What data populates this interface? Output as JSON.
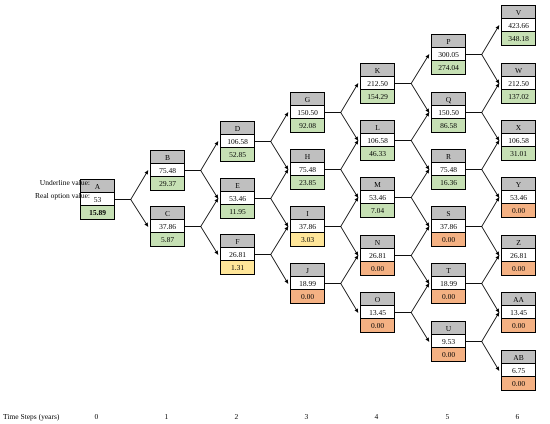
{
  "legend": {
    "underline": "Underline value:",
    "real_option": "Real option value:"
  },
  "time_axis": {
    "caption": "Time Steps (years)",
    "steps": [
      "0",
      "1",
      "2",
      "3",
      "4",
      "5",
      "6"
    ]
  },
  "colors": {
    "green": "#c6e0b4",
    "yellow": "#ffe699",
    "orange": "#f4b183",
    "label": "#bfbfbf"
  },
  "nodes": [
    {
      "id": "A",
      "step": 0,
      "underline": "53",
      "option": "15.89",
      "color": "green",
      "bold": true
    },
    {
      "id": "B",
      "step": 1,
      "underline": "75.48",
      "option": "29.37",
      "color": "green"
    },
    {
      "id": "C",
      "step": 1,
      "underline": "37.86",
      "option": "5.87",
      "color": "green"
    },
    {
      "id": "D",
      "step": 2,
      "underline": "106.58",
      "option": "52.85",
      "color": "green"
    },
    {
      "id": "E",
      "step": 2,
      "underline": "53.46",
      "option": "11.95",
      "color": "green"
    },
    {
      "id": "F",
      "step": 2,
      "underline": "26.81",
      "option": "1.31",
      "color": "yellow"
    },
    {
      "id": "G",
      "step": 3,
      "underline": "150.50",
      "option": "92.08",
      "color": "green"
    },
    {
      "id": "H",
      "step": 3,
      "underline": "75.48",
      "option": "23.85",
      "color": "green"
    },
    {
      "id": "I",
      "step": 3,
      "underline": "37.86",
      "option": "3.03",
      "color": "yellow"
    },
    {
      "id": "J",
      "step": 3,
      "underline": "18.99",
      "option": "0.00",
      "color": "orange"
    },
    {
      "id": "K",
      "step": 4,
      "underline": "212.50",
      "option": "154.29",
      "color": "green"
    },
    {
      "id": "L",
      "step": 4,
      "underline": "106.58",
      "option": "46.33",
      "color": "green"
    },
    {
      "id": "M",
      "step": 4,
      "underline": "53.46",
      "option": "7.04",
      "color": "green"
    },
    {
      "id": "N",
      "step": 4,
      "underline": "26.81",
      "option": "0.00",
      "color": "orange"
    },
    {
      "id": "O",
      "step": 4,
      "underline": "13.45",
      "option": "0.00",
      "color": "orange"
    },
    {
      "id": "P",
      "step": 5,
      "underline": "300.05",
      "option": "274.04",
      "color": "green"
    },
    {
      "id": "Q",
      "step": 5,
      "underline": "150.50",
      "option": "86.58",
      "color": "green"
    },
    {
      "id": "R",
      "step": 5,
      "underline": "75.48",
      "option": "16.36",
      "color": "green"
    },
    {
      "id": "S",
      "step": 5,
      "underline": "37.86",
      "option": "0.00",
      "color": "orange"
    },
    {
      "id": "T",
      "step": 5,
      "underline": "18.99",
      "option": "0.00",
      "color": "orange"
    },
    {
      "id": "U",
      "step": 5,
      "underline": "9.53",
      "option": "0.00",
      "color": "orange"
    },
    {
      "id": "V",
      "step": 6,
      "underline": "423.66",
      "option": "348.18",
      "color": "green"
    },
    {
      "id": "W",
      "step": 6,
      "underline": "212.50",
      "option": "137.02",
      "color": "green"
    },
    {
      "id": "X",
      "step": 6,
      "underline": "106.58",
      "option": "31.01",
      "color": "green"
    },
    {
      "id": "Y",
      "step": 6,
      "underline": "53.46",
      "option": "0.00",
      "color": "orange"
    },
    {
      "id": "Z",
      "step": 6,
      "underline": "26.81",
      "option": "0.00",
      "color": "orange"
    },
    {
      "id": "AA",
      "step": 6,
      "underline": "13.45",
      "option": "0.00",
      "color": "orange"
    },
    {
      "id": "AB",
      "step": 6,
      "underline": "6.75",
      "option": "0.00",
      "color": "orange"
    }
  ],
  "edges": [
    [
      "A",
      "B"
    ],
    [
      "A",
      "C"
    ],
    [
      "B",
      "D"
    ],
    [
      "B",
      "E"
    ],
    [
      "C",
      "E"
    ],
    [
      "C",
      "F"
    ],
    [
      "D",
      "G"
    ],
    [
      "D",
      "H"
    ],
    [
      "E",
      "H"
    ],
    [
      "E",
      "I"
    ],
    [
      "F",
      "I"
    ],
    [
      "F",
      "J"
    ],
    [
      "G",
      "K"
    ],
    [
      "G",
      "L"
    ],
    [
      "H",
      "L"
    ],
    [
      "H",
      "M"
    ],
    [
      "I",
      "M"
    ],
    [
      "I",
      "N"
    ],
    [
      "J",
      "N"
    ],
    [
      "J",
      "O"
    ],
    [
      "K",
      "P"
    ],
    [
      "K",
      "Q"
    ],
    [
      "L",
      "Q"
    ],
    [
      "L",
      "R"
    ],
    [
      "M",
      "R"
    ],
    [
      "M",
      "S"
    ],
    [
      "N",
      "S"
    ],
    [
      "N",
      "T"
    ],
    [
      "O",
      "T"
    ],
    [
      "O",
      "U"
    ],
    [
      "P",
      "V"
    ],
    [
      "P",
      "W"
    ],
    [
      "Q",
      "W"
    ],
    [
      "Q",
      "X"
    ],
    [
      "R",
      "X"
    ],
    [
      "R",
      "Y"
    ],
    [
      "S",
      "Y"
    ],
    [
      "S",
      "Z"
    ],
    [
      "T",
      "Z"
    ],
    [
      "T",
      "AA"
    ],
    [
      "U",
      "AA"
    ],
    [
      "U",
      "AB"
    ]
  ]
}
